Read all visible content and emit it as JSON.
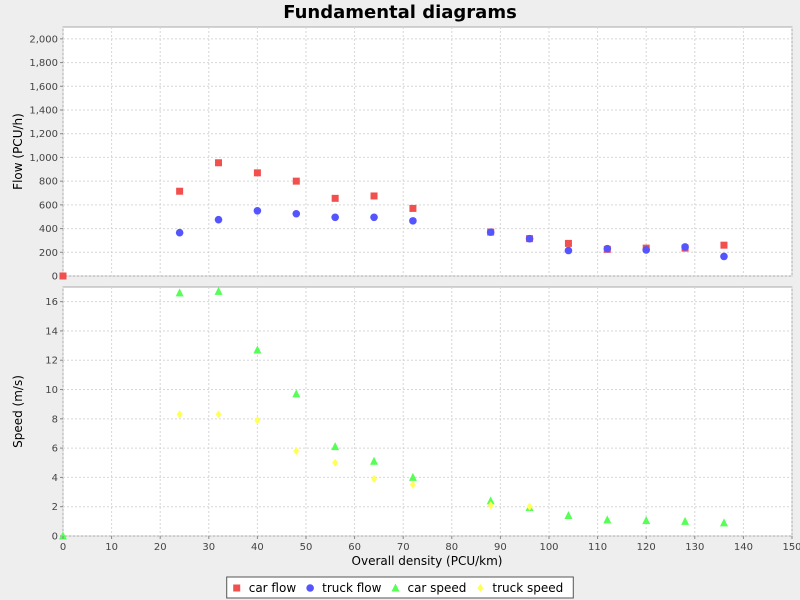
{
  "chart_data": {
    "type": "scatter",
    "title": "Fundamental diagrams",
    "xlabel": "Overall density (PCU/km)",
    "xlim": [
      0,
      150
    ],
    "xticks": [
      "0",
      "10",
      "20",
      "30",
      "40",
      "50",
      "60",
      "70",
      "80",
      "90",
      "100",
      "110",
      "120",
      "130",
      "140",
      "150"
    ],
    "xtick_values": [
      0,
      10,
      20,
      30,
      40,
      50,
      60,
      70,
      80,
      90,
      100,
      110,
      120,
      130,
      140,
      150
    ],
    "grid": true,
    "legend_position": "bottom",
    "panels": [
      {
        "ylabel": "Flow (PCU/h)",
        "ylim": [
          0,
          2100
        ],
        "yticks": [
          "0",
          "200",
          "400",
          "600",
          "800",
          "1,000",
          "1,200",
          "1,400",
          "1,600",
          "1,800",
          "2,000"
        ],
        "ytick_values": [
          0,
          200,
          400,
          600,
          800,
          1000,
          1200,
          1400,
          1600,
          1800,
          2000
        ],
        "series": [
          {
            "name": "car flow",
            "marker": "square",
            "color": "#f24f4f",
            "x": [
              0,
              24,
              32,
              40,
              48,
              56,
              64,
              72,
              88,
              96,
              104,
              112,
              120,
              128,
              136
            ],
            "y": [
              0,
              715,
              955,
              870,
              800,
              655,
              675,
              570,
              370,
              315,
              275,
              225,
              235,
              235,
              260
            ]
          },
          {
            "name": "truck flow",
            "marker": "circle",
            "color": "#5555ff",
            "x": [
              24,
              32,
              40,
              48,
              56,
              64,
              72,
              88,
              96,
              104,
              112,
              120,
              128,
              136
            ],
            "y": [
              365,
              475,
              550,
              525,
              495,
              495,
              465,
              370,
              315,
              215,
              230,
              220,
              245,
              165
            ]
          }
        ]
      },
      {
        "ylabel": "Speed (m/s)",
        "ylim": [
          0,
          17
        ],
        "yticks": [
          "0",
          "2",
          "4",
          "6",
          "8",
          "10",
          "12",
          "14",
          "16"
        ],
        "ytick_values": [
          0,
          2,
          4,
          6,
          8,
          10,
          12,
          14,
          16
        ],
        "series": [
          {
            "name": "car speed",
            "marker": "triangle",
            "color": "#55ff55",
            "x": [
              0,
              24,
              32,
              40,
              48,
              56,
              64,
              72,
              88,
              96,
              104,
              112,
              120,
              128,
              136
            ],
            "y": [
              0,
              16.6,
              16.7,
              12.7,
              9.7,
              6.1,
              5.1,
              4.0,
              2.4,
              1.95,
              1.4,
              1.1,
              1.05,
              1.0,
              0.9
            ]
          },
          {
            "name": "truck speed",
            "marker": "diamond",
            "color": "#ffff55",
            "x": [
              24,
              32,
              40,
              48,
              56,
              64,
              72,
              88,
              96
            ],
            "y": [
              8.3,
              8.3,
              7.9,
              5.8,
              5.0,
              3.9,
              3.5,
              2.1,
              2.0
            ]
          }
        ]
      }
    ]
  }
}
